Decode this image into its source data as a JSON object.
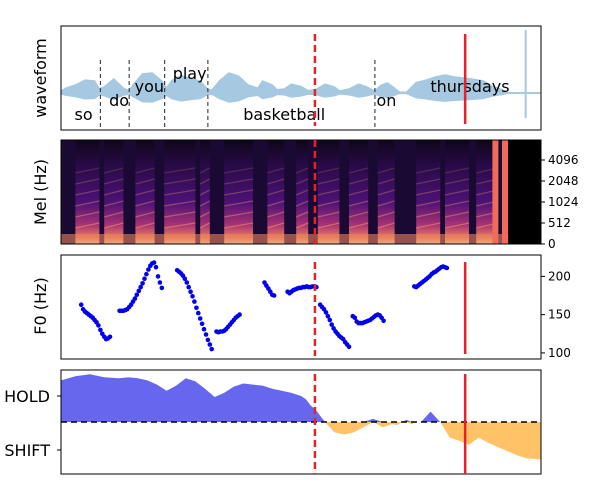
{
  "colors": {
    "waveform": "#a6c8e0",
    "f0_points": "#0000ee",
    "hold_fill": "#6666ee",
    "shift_fill": "#ffc266",
    "marker_red": "#e8202a",
    "divider": "#222222",
    "threshold": "#000000"
  },
  "chart_data": [
    {
      "type": "area",
      "panel": "waveform",
      "ylabel": "waveform",
      "grid": false,
      "x_range": [
        0,
        100
      ],
      "words": [
        {
          "text": "so",
          "x": 4.7,
          "row": "low"
        },
        {
          "text": "do",
          "x": 12.1,
          "row": "mid"
        },
        {
          "text": "you",
          "x": 18.4,
          "row": "midhigh"
        },
        {
          "text": "play",
          "x": 26.8,
          "row": "high"
        },
        {
          "text": "basketball",
          "x": 46.5,
          "row": "low"
        },
        {
          "text": "on",
          "x": 67.8,
          "row": "mid"
        },
        {
          "text": "thursdays",
          "x": 85.2,
          "row": "midhigh"
        }
      ],
      "word_boundaries": [
        8.2,
        14.2,
        21.6,
        30.6,
        65.4
      ],
      "envelope": [
        [
          0,
          0.05
        ],
        [
          1,
          0.12
        ],
        [
          3,
          0.2
        ],
        [
          5,
          0.32
        ],
        [
          7,
          0.3
        ],
        [
          8,
          0.1
        ],
        [
          9,
          0.15
        ],
        [
          11,
          0.35
        ],
        [
          13,
          0.12
        ],
        [
          14.2,
          0.05
        ],
        [
          15,
          0.2
        ],
        [
          17,
          0.48
        ],
        [
          19,
          0.5
        ],
        [
          21,
          0.3
        ],
        [
          22,
          0.12
        ],
        [
          23,
          0.3
        ],
        [
          25,
          0.44
        ],
        [
          27,
          0.36
        ],
        [
          29,
          0.3
        ],
        [
          30.6,
          0.08
        ],
        [
          31.5,
          0.08
        ],
        [
          33,
          0.3
        ],
        [
          35,
          0.5
        ],
        [
          37,
          0.42
        ],
        [
          39,
          0.2
        ],
        [
          41,
          0.12
        ],
        [
          42,
          0.3
        ],
        [
          44,
          0.2
        ],
        [
          45,
          0.08
        ],
        [
          46.5,
          0.1
        ],
        [
          48,
          0.22
        ],
        [
          50,
          0.16
        ],
        [
          51.5,
          0.06
        ],
        [
          53,
          0.08
        ],
        [
          55,
          0.22
        ],
        [
          57,
          0.15
        ],
        [
          58,
          0.05
        ],
        [
          60,
          0.1
        ],
        [
          62,
          0.22
        ],
        [
          63.5,
          0.16
        ],
        [
          65.4,
          0.05
        ],
        [
          66.5,
          0.18
        ],
        [
          68,
          0.25
        ],
        [
          69.5,
          0.12
        ],
        [
          70.5,
          0.02
        ],
        [
          72,
          0.02
        ],
        [
          74,
          0.26
        ],
        [
          76,
          0.32
        ],
        [
          78,
          0.4
        ],
        [
          80,
          0.45
        ],
        [
          82,
          0.4
        ],
        [
          85,
          0.36
        ],
        [
          88,
          0.3
        ],
        [
          90,
          0.16
        ],
        [
          92,
          0.08
        ],
        [
          93.2,
          0.0
        ],
        [
          100,
          0.0
        ]
      ],
      "click": {
        "x": 96.8,
        "amplitude": 0.95
      },
      "baseline_tail": [
        93.2,
        100
      ]
    },
    {
      "type": "heatmap",
      "panel": "spectrogram",
      "ylabel": "Mel (Hz)",
      "y_ticks": [
        "0",
        "512",
        "1024",
        "2048",
        "4096"
      ],
      "x_range": [
        0,
        100
      ],
      "grid": false,
      "voiced_segments": [
        [
          3,
          8
        ],
        [
          9,
          13
        ],
        [
          15.5,
          19.5
        ],
        [
          21.5,
          28
        ],
        [
          29,
          31
        ],
        [
          34,
          40
        ],
        [
          43,
          46.5
        ],
        [
          49,
          51.5
        ],
        [
          53.5,
          58
        ],
        [
          60,
          64
        ],
        [
          66,
          69.5
        ],
        [
          74,
          79
        ],
        [
          80,
          85
        ],
        [
          86.5,
          91
        ]
      ],
      "end_bars": [
        90.5,
        92.5
      ],
      "silence_start": 93.2
    },
    {
      "type": "scatter",
      "panel": "pitch",
      "ylabel": "F0 (Hz)",
      "ylim": [
        92,
        228
      ],
      "y_ticks": [
        100,
        150,
        200
      ],
      "x_range": [
        0,
        100
      ],
      "grid": false,
      "points": [
        [
          4.2,
          163
        ],
        [
          4.6,
          157
        ],
        [
          5,
          154
        ],
        [
          5.4,
          152
        ],
        [
          5.8,
          150
        ],
        [
          6.2,
          148
        ],
        [
          6.6,
          146
        ],
        [
          7,
          143
        ],
        [
          7.4,
          140
        ],
        [
          7.8,
          136
        ],
        [
          8.2,
          130
        ],
        [
          8.6,
          125
        ],
        [
          9.0,
          121
        ],
        [
          9.4,
          118
        ],
        [
          9.8,
          119
        ],
        [
          10.2,
          121
        ],
        [
          12.2,
          155
        ],
        [
          12.6,
          155
        ],
        [
          13,
          155
        ],
        [
          13.4,
          156
        ],
        [
          13.8,
          157
        ],
        [
          14.2,
          160
        ],
        [
          14.6,
          163
        ],
        [
          15,
          167
        ],
        [
          15.4,
          171
        ],
        [
          15.8,
          176
        ],
        [
          16.2,
          181
        ],
        [
          16.6,
          186
        ],
        [
          17,
          191
        ],
        [
          17.4,
          197
        ],
        [
          17.8,
          203
        ],
        [
          18.2,
          209
        ],
        [
          18.6,
          214
        ],
        [
          19,
          217
        ],
        [
          19.4,
          218
        ],
        [
          19.8,
          212
        ],
        [
          20.2,
          200
        ],
        [
          20.6,
          192
        ],
        [
          21,
          185
        ],
        [
          24.2,
          208
        ],
        [
          24.6,
          206
        ],
        [
          25,
          204
        ],
        [
          25.4,
          201
        ],
        [
          25.8,
          197
        ],
        [
          26.2,
          192
        ],
        [
          26.6,
          186
        ],
        [
          27,
          180
        ],
        [
          27.4,
          174
        ],
        [
          27.8,
          167
        ],
        [
          28.2,
          159
        ],
        [
          28.6,
          152
        ],
        [
          29,
          145
        ],
        [
          29.4,
          138
        ],
        [
          29.8,
          131
        ],
        [
          30.2,
          124
        ],
        [
          30.6,
          117
        ],
        [
          31,
          111
        ],
        [
          31.4,
          105
        ],
        [
          32.4,
          128
        ],
        [
          32.8,
          127
        ],
        [
          33.2,
          128
        ],
        [
          33.6,
          128
        ],
        [
          34,
          129
        ],
        [
          34.4,
          131
        ],
        [
          34.8,
          134
        ],
        [
          35.2,
          137
        ],
        [
          35.6,
          140
        ],
        [
          36,
          143
        ],
        [
          36.4,
          146
        ],
        [
          36.8,
          148
        ],
        [
          37.2,
          150
        ],
        [
          42.4,
          192
        ],
        [
          42.8,
          188
        ],
        [
          43.2,
          184
        ],
        [
          43.6,
          180
        ],
        [
          44,
          176
        ],
        [
          44.4,
          175
        ],
        [
          47.2,
          180
        ],
        [
          47.6,
          178
        ],
        [
          48,
          180
        ],
        [
          48.4,
          182
        ],
        [
          48.8,
          183
        ],
        [
          49.2,
          184
        ],
        [
          49.6,
          185
        ],
        [
          50,
          185
        ],
        [
          50.4,
          186
        ],
        [
          50.8,
          186
        ],
        [
          51.2,
          187
        ],
        [
          51.6,
          186
        ],
        [
          52,
          186
        ],
        [
          52.4,
          187
        ],
        [
          52.8,
          187
        ],
        [
          53.2,
          186
        ],
        [
          54,
          163
        ],
        [
          54.4,
          160
        ],
        [
          54.8,
          157
        ],
        [
          55.2,
          153
        ],
        [
          55.6,
          148
        ],
        [
          56,
          143
        ],
        [
          56.4,
          137
        ],
        [
          56.8,
          132
        ],
        [
          57.2,
          128
        ],
        [
          57.6,
          125
        ],
        [
          58,
          122
        ],
        [
          58.4,
          120
        ],
        [
          58.8,
          118
        ],
        [
          59.2,
          114
        ],
        [
          59.6,
          111
        ],
        [
          60,
          108
        ],
        [
          60.8,
          148
        ],
        [
          61.2,
          146
        ],
        [
          61.6,
          141
        ],
        [
          62,
          139
        ],
        [
          62.4,
          139
        ],
        [
          62.8,
          139
        ],
        [
          63.2,
          140
        ],
        [
          63.6,
          141
        ],
        [
          64,
          142
        ],
        [
          64.4,
          143
        ],
        [
          64.8,
          145
        ],
        [
          65.2,
          147
        ],
        [
          65.6,
          149
        ],
        [
          66,
          150
        ],
        [
          66.4,
          149
        ],
        [
          66.8,
          146
        ],
        [
          67.2,
          142
        ],
        [
          73.6,
          187
        ],
        [
          74,
          186
        ],
        [
          74.4,
          188
        ],
        [
          74.8,
          190
        ],
        [
          75.2,
          192
        ],
        [
          75.6,
          194
        ],
        [
          76,
          196
        ],
        [
          76.4,
          198
        ],
        [
          76.8,
          200
        ],
        [
          77.2,
          203
        ],
        [
          77.6,
          205
        ],
        [
          78,
          206
        ],
        [
          78.4,
          208
        ],
        [
          78.8,
          210
        ],
        [
          79.2,
          212
        ],
        [
          79.6,
          213
        ],
        [
          80,
          212
        ],
        [
          80.4,
          211
        ]
      ]
    },
    {
      "type": "area",
      "panel": "turn_taking",
      "y_ticks": [
        "HOLD",
        "SHIFT"
      ],
      "threshold": 0.5,
      "threshold_style": "dashed",
      "ylim": [
        0,
        1
      ],
      "x_range": [
        0,
        100
      ],
      "grid": false,
      "x": [
        0,
        3,
        6,
        9,
        12,
        14,
        16,
        18,
        20,
        22,
        24,
        26,
        28,
        30,
        32,
        34,
        36,
        38,
        40,
        42,
        44,
        46,
        48,
        50,
        51,
        52,
        53,
        55,
        57,
        59,
        61,
        63,
        65,
        67,
        69,
        70,
        71,
        72,
        73,
        74,
        75,
        77,
        79,
        81,
        83,
        85,
        87,
        89,
        91,
        93,
        95,
        97,
        100
      ],
      "values": [
        0.9,
        0.94,
        0.96,
        0.93,
        0.92,
        0.93,
        0.92,
        0.9,
        0.86,
        0.8,
        0.85,
        0.92,
        0.89,
        0.82,
        0.74,
        0.78,
        0.84,
        0.87,
        0.86,
        0.85,
        0.82,
        0.8,
        0.78,
        0.75,
        0.72,
        0.66,
        0.62,
        0.5,
        0.4,
        0.38,
        0.4,
        0.45,
        0.53,
        0.45,
        0.48,
        0.47,
        0.5,
        0.52,
        0.48,
        0.5,
        0.5,
        0.6,
        0.5,
        0.35,
        0.32,
        0.28,
        0.35,
        0.3,
        0.26,
        0.22,
        0.18,
        0.15,
        0.14
      ]
    }
  ],
  "markers": {
    "dashed_x": 52.9,
    "solid_x": 84.2
  }
}
